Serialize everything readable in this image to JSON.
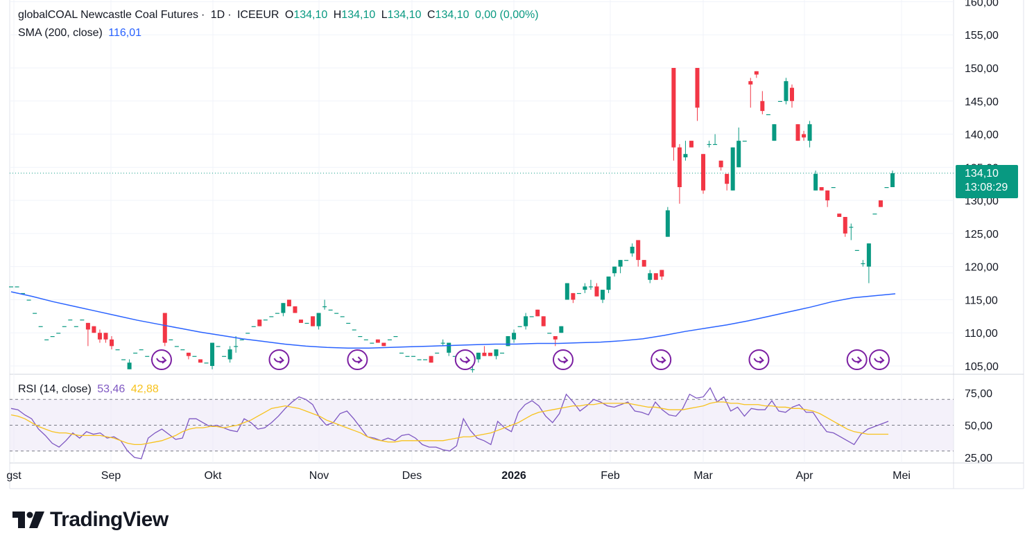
{
  "header": {
    "symbol": "globalCOAL Newcastle Coal Futures",
    "interval": "1D",
    "exchange": "ICEEUR",
    "o_label": "O",
    "o_val": "134,10",
    "h_label": "H",
    "h_val": "134,10",
    "l_label": "L",
    "l_val": "134,10",
    "c_label": "C",
    "c_val": "134,10",
    "change": "0,00 (0,00%)"
  },
  "sma": {
    "label": "SMA (200, close)",
    "value": "116,01"
  },
  "rsi": {
    "label": "RSI (14, close)",
    "value1": "53,46",
    "value2": "42,88"
  },
  "price_tag": {
    "price": "134,10",
    "countdown": "13:08:29"
  },
  "brand": {
    "name": "TradingView"
  },
  "colors": {
    "up": "#089981",
    "down": "#f23645",
    "sma": "#2962ff",
    "rsi": "#7e57c2",
    "rsi_ma": "#f7c21c",
    "event": "#7b1fa2"
  },
  "chart_data": [
    {
      "type": "candlestick",
      "y_ticks": [
        "160,00",
        "155,00",
        "150,00",
        "145,00",
        "140,00",
        "135,00",
        "130,00",
        "125,00",
        "120,00",
        "115,00",
        "110,00",
        "105,00"
      ],
      "ylim": [
        104,
        160
      ],
      "x_ticks": [
        "gst",
        "Sep",
        "Okt",
        "Nov",
        "Des",
        "2026",
        "Feb",
        "Mar",
        "Apr",
        "Mei"
      ],
      "last_price": 134.1,
      "candles": [
        [
          117.0,
          117.0,
          117.0,
          117.0
        ],
        [
          117.0,
          117.0,
          117.0,
          117.0
        ],
        [
          116.0,
          116.0,
          116.0,
          116.0
        ],
        [
          115.0,
          115.0,
          115.0,
          115.0
        ],
        [
          113.0,
          113.0,
          113.0,
          113.0
        ],
        [
          111.0,
          111.0,
          111.0,
          111.0
        ],
        [
          109.0,
          109.0,
          109.0,
          109.0
        ],
        [
          109.5,
          109.5,
          109.5,
          109.5
        ],
        [
          110.0,
          110.0,
          110.0,
          110.0
        ],
        [
          111.0,
          111.0,
          111.0,
          111.0
        ],
        [
          112.0,
          112.0,
          112.0,
          112.0
        ],
        [
          111.0,
          111.0,
          111.0,
          111.0
        ],
        [
          112.0,
          112.0,
          112.0,
          112.0
        ],
        [
          111.5,
          111.5,
          108.0,
          110.5
        ],
        [
          111.0,
          111.0,
          110.0,
          110.0
        ],
        [
          110.0,
          110.5,
          108.5,
          109.0
        ],
        [
          110.0,
          110.0,
          108.5,
          109.0
        ],
        [
          109.0,
          109.5,
          107.5,
          108.0
        ],
        [
          107.5,
          107.5,
          107.5,
          107.5
        ],
        [
          106.0,
          106.0,
          106.0,
          106.0
        ],
        [
          104.5,
          106.0,
          104.5,
          105.5
        ],
        [
          107.0,
          107.0,
          107.0,
          107.0
        ],
        [
          107.5,
          107.5,
          107.5,
          107.5
        ],
        [
          106.5,
          106.5,
          106.5,
          106.5
        ],
        [
          106.0,
          106.0,
          106.0,
          106.0
        ],
        [
          106.5,
          106.5,
          106.5,
          106.5
        ],
        [
          113.0,
          113.0,
          108.0,
          108.5
        ],
        [
          109.0,
          109.0,
          109.0,
          109.0
        ],
        [
          108.0,
          108.0,
          108.0,
          108.0
        ],
        [
          107.5,
          107.5,
          107.5,
          107.5
        ],
        [
          107.0,
          107.0,
          106.0,
          106.5
        ],
        [
          106.5,
          106.5,
          106.5,
          106.5
        ],
        [
          106.0,
          106.0,
          105.5,
          105.5
        ],
        [
          105.5,
          105.5,
          105.5,
          105.5
        ],
        [
          105.0,
          108.5,
          104.5,
          108.5
        ],
        [
          108.0,
          108.0,
          108.0,
          108.0
        ],
        [
          106.5,
          106.5,
          106.5,
          106.5
        ],
        [
          106.0,
          108.0,
          105.5,
          107.5
        ],
        [
          108.0,
          109.5,
          107.0,
          108.0
        ],
        [
          109.0,
          109.0,
          109.0,
          109.0
        ],
        [
          110.0,
          110.0,
          110.0,
          110.0
        ],
        [
          111.0,
          111.0,
          111.0,
          111.0
        ],
        [
          112.0,
          112.0,
          111.0,
          111.0
        ],
        [
          112.0,
          112.0,
          112.0,
          112.0
        ],
        [
          112.5,
          112.5,
          112.5,
          112.5
        ],
        [
          113.0,
          113.0,
          113.0,
          113.0
        ],
        [
          113.0,
          114.5,
          112.5,
          114.5
        ],
        [
          115.0,
          115.0,
          114.0,
          114.0
        ],
        [
          114.0,
          114.0,
          113.0,
          113.0
        ],
        [
          112.0,
          112.0,
          111.5,
          111.5
        ],
        [
          111.5,
          111.5,
          111.5,
          111.5
        ],
        [
          112.5,
          112.5,
          111.0,
          111.0
        ],
        [
          111.0,
          113.0,
          110.5,
          113.0
        ],
        [
          114.0,
          115.0,
          113.5,
          114.0
        ],
        [
          113.5,
          113.5,
          113.5,
          113.5
        ],
        [
          113.0,
          113.0,
          113.0,
          113.0
        ],
        [
          112.5,
          112.5,
          112.5,
          112.5
        ],
        [
          111.5,
          111.5,
          111.5,
          111.5
        ],
        [
          110.5,
          110.5,
          110.5,
          110.5
        ],
        [
          109.5,
          109.5,
          109.5,
          109.5
        ],
        [
          109.0,
          109.0,
          109.0,
          109.0
        ],
        [
          108.5,
          108.5,
          108.5,
          108.5
        ],
        [
          109.0,
          109.0,
          108.5,
          108.5
        ],
        [
          108.5,
          108.5,
          108.0,
          108.0
        ],
        [
          109.0,
          109.0,
          109.0,
          109.0
        ],
        [
          109.5,
          109.5,
          109.5,
          109.5
        ],
        [
          107.0,
          107.0,
          107.0,
          107.0
        ],
        [
          106.5,
          106.5,
          106.5,
          106.5
        ],
        [
          106.5,
          106.5,
          106.5,
          106.5
        ],
        [
          106.0,
          106.0,
          106.0,
          106.0
        ],
        [
          106.0,
          106.0,
          106.0,
          106.0
        ],
        [
          106.5,
          106.5,
          105.5,
          105.5
        ],
        [
          107.0,
          107.0,
          107.0,
          107.0
        ],
        [
          108.5,
          109.0,
          108.0,
          108.5
        ],
        [
          107.0,
          108.5,
          106.5,
          108.5
        ],
        [
          106.5,
          106.5,
          106.5,
          106.5
        ],
        [
          106.0,
          106.0,
          105.5,
          105.5
        ],
        [
          105.0,
          105.0,
          105.0,
          105.0
        ],
        [
          104.5,
          106.0,
          104.0,
          104.5
        ],
        [
          106.0,
          107.0,
          105.5,
          107.0
        ],
        [
          107.0,
          108.0,
          106.5,
          106.5
        ],
        [
          107.0,
          107.0,
          106.5,
          106.5
        ],
        [
          106.5,
          107.5,
          106.0,
          107.5
        ],
        [
          107.0,
          107.0,
          107.0,
          107.0
        ],
        [
          108.0,
          109.5,
          108.0,
          109.5
        ],
        [
          109.0,
          110.5,
          108.5,
          110.0
        ],
        [
          111.0,
          111.0,
          111.0,
          111.0
        ],
        [
          111.0,
          113.0,
          110.5,
          112.5
        ],
        [
          112.5,
          112.5,
          112.5,
          112.5
        ],
        [
          113.5,
          113.5,
          112.5,
          112.5
        ],
        [
          112.5,
          112.5,
          111.0,
          111.0
        ],
        [
          110.0,
          110.0,
          110.0,
          110.0
        ],
        [
          109.5,
          109.5,
          108.0,
          109.0
        ],
        [
          110.0,
          111.0,
          110.0,
          111.0
        ],
        [
          115.0,
          117.5,
          115.0,
          117.5
        ],
        [
          116.0,
          116.0,
          114.5,
          115.0
        ],
        [
          116.0,
          116.0,
          116.0,
          116.0
        ],
        [
          116.5,
          117.5,
          116.0,
          117.0
        ],
        [
          117.0,
          118.0,
          116.5,
          117.0
        ],
        [
          117.0,
          117.5,
          115.5,
          115.5
        ],
        [
          115.0,
          116.5,
          114.5,
          116.5
        ],
        [
          116.5,
          118.5,
          116.0,
          118.5
        ],
        [
          119.0,
          120.0,
          118.5,
          120.0
        ],
        [
          120.0,
          121.0,
          119.0,
          121.0
        ],
        [
          121.0,
          121.0,
          121.0,
          121.0
        ],
        [
          122.0,
          123.5,
          121.5,
          123.0
        ],
        [
          124.0,
          124.0,
          120.0,
          121.0
        ],
        [
          121.0,
          121.0,
          120.0,
          120.0
        ],
        [
          118.0,
          119.5,
          117.5,
          119.0
        ],
        [
          119.0,
          119.0,
          118.0,
          118.0
        ],
        [
          119.5,
          119.5,
          118.0,
          118.5
        ],
        [
          124.5,
          129.0,
          124.5,
          128.5
        ],
        [
          150.0,
          150.0,
          136.0,
          138.0
        ],
        [
          138.0,
          138.5,
          129.5,
          132.0
        ],
        [
          136.5,
          139.0,
          136.0,
          137.0
        ],
        [
          139.0,
          139.0,
          138.0,
          138.0
        ],
        [
          150.0,
          150.0,
          142.0,
          144.0
        ],
        [
          137.0,
          137.0,
          131.0,
          131.5
        ],
        [
          138.5,
          139.0,
          138.0,
          138.5
        ],
        [
          138.5,
          140.0,
          138.5,
          138.5
        ],
        [
          136.0,
          136.0,
          134.5,
          135.0
        ],
        [
          134.0,
          134.0,
          131.5,
          132.5
        ],
        [
          131.5,
          138.0,
          131.5,
          138.0
        ],
        [
          135.0,
          141.0,
          135.0,
          139.0
        ],
        [
          139.0,
          139.0,
          139.0,
          139.0
        ],
        [
          148.0,
          148.5,
          144.0,
          147.5
        ],
        [
          149.5,
          149.5,
          148.5,
          149.0
        ],
        [
          145.0,
          146.5,
          143.0,
          143.5
        ],
        [
          143.0,
          143.0,
          143.0,
          143.0
        ],
        [
          139.0,
          141.5,
          139.0,
          141.5
        ],
        [
          145.0,
          145.0,
          145.0,
          145.0
        ],
        [
          145.0,
          148.5,
          144.5,
          148.0
        ],
        [
          147.0,
          147.5,
          144.0,
          145.0
        ],
        [
          141.5,
          141.5,
          139.0,
          139.0
        ],
        [
          140.0,
          140.5,
          139.0,
          139.5
        ],
        [
          139.0,
          142.0,
          138.0,
          141.5
        ],
        [
          131.5,
          134.5,
          131.5,
          134.0
        ],
        [
          132.0,
          132.0,
          131.5,
          131.5
        ],
        [
          131.5,
          131.5,
          129.0,
          130.0
        ],
        [
          132.0,
          132.0,
          132.0,
          132.0
        ],
        [
          128.0,
          128.0,
          127.5,
          127.5
        ],
        [
          127.5,
          127.5,
          124.5,
          125.0
        ],
        [
          126.0,
          126.5,
          124.0,
          126.0
        ],
        [
          122.5,
          122.5,
          122.5,
          122.5
        ],
        [
          120.5,
          121.0,
          120.0,
          120.5
        ],
        [
          120.0,
          123.5,
          117.5,
          123.5
        ],
        [
          128.0,
          128.0,
          128.0,
          128.0
        ],
        [
          130.0,
          130.0,
          129.0,
          129.0
        ],
        [
          132.0,
          132.0,
          132.0,
          132.0
        ],
        [
          132.0,
          134.5,
          132.0,
          134.1
        ]
      ],
      "sma200": [
        116.2,
        115.5,
        114.7,
        114.0,
        113.3,
        112.6,
        111.9,
        111.3,
        110.7,
        110.1,
        109.6,
        109.1,
        108.7,
        108.3,
        108.0,
        107.8,
        107.7,
        107.7,
        107.8,
        107.9,
        108.0,
        108.1,
        108.2,
        108.3,
        108.3,
        108.4,
        108.4,
        108.5,
        108.6,
        108.8,
        109.1,
        109.6,
        110.2,
        110.7,
        111.2,
        111.8,
        112.5,
        113.2,
        113.9,
        114.7,
        115.3,
        115.6,
        115.9
      ],
      "events_index": [
        8,
        20,
        28,
        39,
        49,
        59,
        69,
        79,
        90
      ]
    },
    {
      "type": "line",
      "title": "RSI (14, close)",
      "y_ticks": [
        "75,00",
        "50,00",
        "25,00"
      ],
      "ylim": [
        25,
        75
      ],
      "bands": [
        30,
        50,
        70
      ],
      "series": [
        {
          "name": "RSI",
          "values": [
            63,
            62,
            58,
            55,
            47,
            42,
            36,
            33,
            38,
            44,
            40,
            45,
            43,
            44,
            40,
            41,
            38,
            30,
            25,
            24,
            40,
            44,
            47,
            43,
            39,
            40,
            55,
            55,
            52,
            49,
            50,
            48,
            46,
            45,
            55,
            52,
            47,
            48,
            52,
            57,
            63,
            68,
            72,
            70,
            66,
            56,
            50,
            52,
            59,
            61,
            55,
            48,
            41,
            40,
            38,
            40,
            38,
            42,
            43,
            40,
            35,
            33,
            33,
            31,
            30,
            34,
            55,
            46,
            40,
            38,
            35,
            53,
            48,
            45,
            60,
            66,
            69,
            65,
            57,
            52,
            59,
            74,
            68,
            61,
            65,
            70,
            68,
            65,
            64,
            66,
            68,
            61,
            60,
            58,
            68,
            62,
            58,
            57,
            63,
            74,
            71,
            72,
            79,
            68,
            72,
            61,
            64,
            57,
            63,
            62,
            62,
            69,
            61,
            60,
            64,
            66,
            60,
            60,
            52,
            45,
            44,
            41,
            38,
            35,
            43,
            47,
            49,
            51,
            53
          ]
        },
        {
          "name": "RSI MA",
          "values": [
            58,
            57,
            55,
            52,
            49,
            47,
            45,
            44,
            44,
            43,
            42,
            42,
            42,
            42,
            41,
            40,
            38,
            36,
            35,
            35,
            36,
            37,
            38,
            40,
            42,
            45,
            47,
            48,
            48,
            49,
            49,
            48,
            49,
            50,
            52,
            54,
            57,
            60,
            63,
            64,
            65,
            64,
            63,
            61,
            59,
            57,
            54,
            52,
            50,
            48,
            46,
            44,
            41,
            39,
            38,
            37,
            37,
            38,
            38,
            38,
            38,
            38,
            38,
            38,
            39,
            40,
            41,
            41,
            42,
            43,
            44,
            46,
            48,
            50,
            52,
            55,
            58,
            60,
            61,
            62,
            63,
            64,
            65,
            65,
            66,
            66,
            67,
            67,
            67,
            67,
            67,
            66,
            65,
            64,
            64,
            63,
            62,
            62,
            62,
            63,
            64,
            65,
            67,
            68,
            68,
            67,
            67,
            66,
            66,
            66,
            65,
            65,
            64,
            64,
            63,
            63,
            62,
            61,
            59,
            56,
            53,
            50,
            47,
            45,
            44,
            43,
            43,
            43,
            43
          ]
        }
      ]
    }
  ]
}
